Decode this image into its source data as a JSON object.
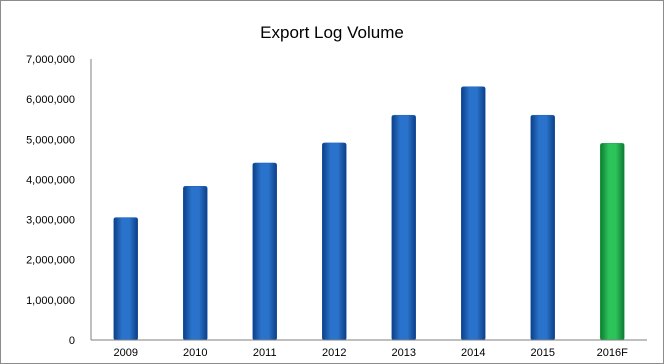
{
  "chart_data": {
    "type": "bar",
    "title": "Export Log Volume",
    "xlabel": "",
    "ylabel": "",
    "categories": [
      "2009",
      "2010",
      "2011",
      "2012",
      "2013",
      "2014",
      "2015",
      "2016F"
    ],
    "values": [
      3050000,
      3830000,
      4410000,
      4910000,
      5600000,
      6310000,
      5600000,
      4900000
    ],
    "ylim": [
      0,
      7000000
    ],
    "yticks": [
      "0",
      "1,000,000",
      "2,000,000",
      "3,000,000",
      "4,000,000",
      "5,000,000",
      "6,000,000",
      "7,000,000"
    ],
    "grid": false,
    "legend": "none",
    "colors": {
      "actual": "#1f5fb4",
      "forecast": "#1fa84a",
      "axis": "#7f7f7f"
    }
  }
}
